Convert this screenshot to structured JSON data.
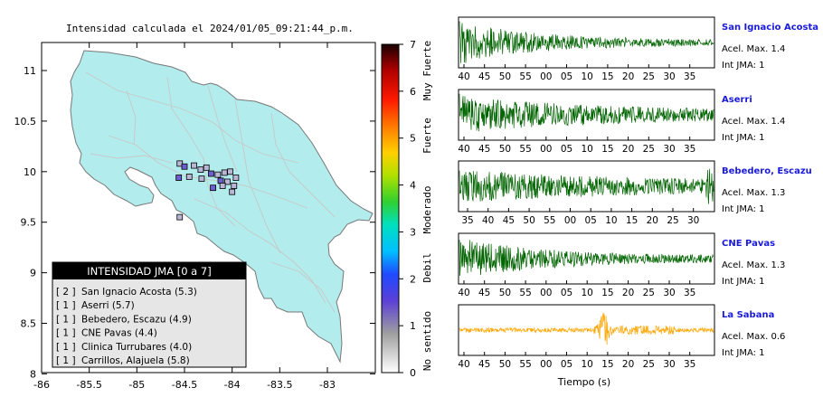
{
  "map": {
    "title": "Intensidad calculada el 2024/01/05_09:21:44_p.m.",
    "x_ticks": [
      "-86",
      "-85.5",
      "-85",
      "-84.5",
      "-84",
      "-83.5",
      "-83"
    ],
    "y_ticks": [
      "11",
      "10.5",
      "10",
      "9.5",
      "9",
      "8.5",
      "8"
    ],
    "colors": {
      "land": "#b2ecec",
      "border": "#777777",
      "roads": "#c8c8c8",
      "station": "#a6a3cf"
    }
  },
  "colorbar": {
    "ticks": [
      "0",
      "1",
      "2",
      "3",
      "4",
      "5",
      "6",
      "7"
    ],
    "labels": [
      "No sentido",
      "Debil",
      "Moderado",
      "Fuerte",
      "Muy Fuerte"
    ]
  },
  "legend": {
    "header": "INTENSIDAD JMA [0 a 7]",
    "items": [
      {
        "level": "[ 2 ]",
        "name": "San Ignacio Acosta (5.3)"
      },
      {
        "level": "[ 1 ]",
        "name": "Aserri (5.7)"
      },
      {
        "level": "[ 1 ]",
        "name": "Bebedero, Escazu (4.9)"
      },
      {
        "level": "[ 1 ]",
        "name": "CNE Pavas (4.4)"
      },
      {
        "level": "[ 1 ]",
        "name": "Clinica Turrubares (4.0)"
      },
      {
        "level": "[ 1 ]",
        "name": "Carrillos, Alajuela (5.8)"
      }
    ]
  },
  "traces": {
    "xlabel": "Tiempo (s)",
    "stations": [
      {
        "name": "San Ignacio Acosta",
        "accel": "Acel. Max. 1.4",
        "int": "Int JMA: 1",
        "color": "#006400",
        "ticks": [
          "40",
          "45",
          "50",
          "55",
          "00",
          "05",
          "10",
          "15",
          "20",
          "25",
          "30",
          "35"
        ]
      },
      {
        "name": "Aserri",
        "accel": "Acel. Max. 1.4",
        "int": "Int JMA: 1",
        "color": "#006400",
        "ticks": [
          "40",
          "45",
          "50",
          "55",
          "00",
          "05",
          "10",
          "15",
          "20",
          "25",
          "30",
          "35"
        ]
      },
      {
        "name": "Bebedero, Escazu",
        "accel": "Acel. Max. 1.3",
        "int": "Int JMA: 1",
        "color": "#006400",
        "ticks": [
          "35",
          "40",
          "45",
          "50",
          "55",
          "00",
          "05",
          "10",
          "15",
          "20",
          "25",
          "30"
        ]
      },
      {
        "name": "CNE Pavas",
        "accel": "Acel. Max. 1.3",
        "int": "Int JMA: 1",
        "color": "#006400",
        "ticks": [
          "40",
          "45",
          "50",
          "55",
          "00",
          "05",
          "10",
          "15",
          "20",
          "25",
          "30",
          "35"
        ]
      },
      {
        "name": "La Sabana",
        "accel": "Acel. Max. 0.6",
        "int": "Int JMA: 1",
        "color": "#ffa500",
        "ticks": [
          "40",
          "45",
          "50",
          "55",
          "00",
          "05",
          "10",
          "15",
          "20",
          "25",
          "30",
          "35"
        ]
      }
    ]
  },
  "chart_data": [
    {
      "type": "scatter",
      "title": "Intensidad calculada el 2024/01/05_09:21:44_p.m.",
      "xlabel": "",
      "ylabel": "",
      "xlim": [
        -86,
        -82.5
      ],
      "ylim": [
        8,
        11.3
      ],
      "points": [
        {
          "x": -84.55,
          "y": 10.08
        },
        {
          "x": -84.5,
          "y": 10.05
        },
        {
          "x": -84.4,
          "y": 10.06
        },
        {
          "x": -84.33,
          "y": 10.02
        },
        {
          "x": -84.27,
          "y": 10.04
        },
        {
          "x": -84.22,
          "y": 9.98
        },
        {
          "x": -84.15,
          "y": 9.97
        },
        {
          "x": -84.08,
          "y": 9.99
        },
        {
          "x": -84.02,
          "y": 10.0
        },
        {
          "x": -84.12,
          "y": 9.91
        },
        {
          "x": -84.05,
          "y": 9.9
        },
        {
          "x": -83.96,
          "y": 9.94
        },
        {
          "x": -84.32,
          "y": 9.93
        },
        {
          "x": -84.2,
          "y": 9.84
        },
        {
          "x": -83.98,
          "y": 9.86
        },
        {
          "x": -84.1,
          "y": 9.86
        },
        {
          "x": -84.45,
          "y": 9.95
        },
        {
          "x": -84.56,
          "y": 9.94
        },
        {
          "x": -84.0,
          "y": 9.8
        },
        {
          "x": -84.55,
          "y": 9.55
        }
      ]
    },
    {
      "type": "line",
      "title": "",
      "xlabel": "Tiempo (s)",
      "ylabel": "",
      "series": [
        {
          "name": "San Ignacio Acosta",
          "peak": 1.4
        },
        {
          "name": "Aserri",
          "peak": 1.4
        },
        {
          "name": "Bebedero, Escazu",
          "peak": 1.3
        },
        {
          "name": "CNE Pavas",
          "peak": 1.3
        },
        {
          "name": "La Sabana",
          "peak": 0.6
        }
      ]
    }
  ]
}
